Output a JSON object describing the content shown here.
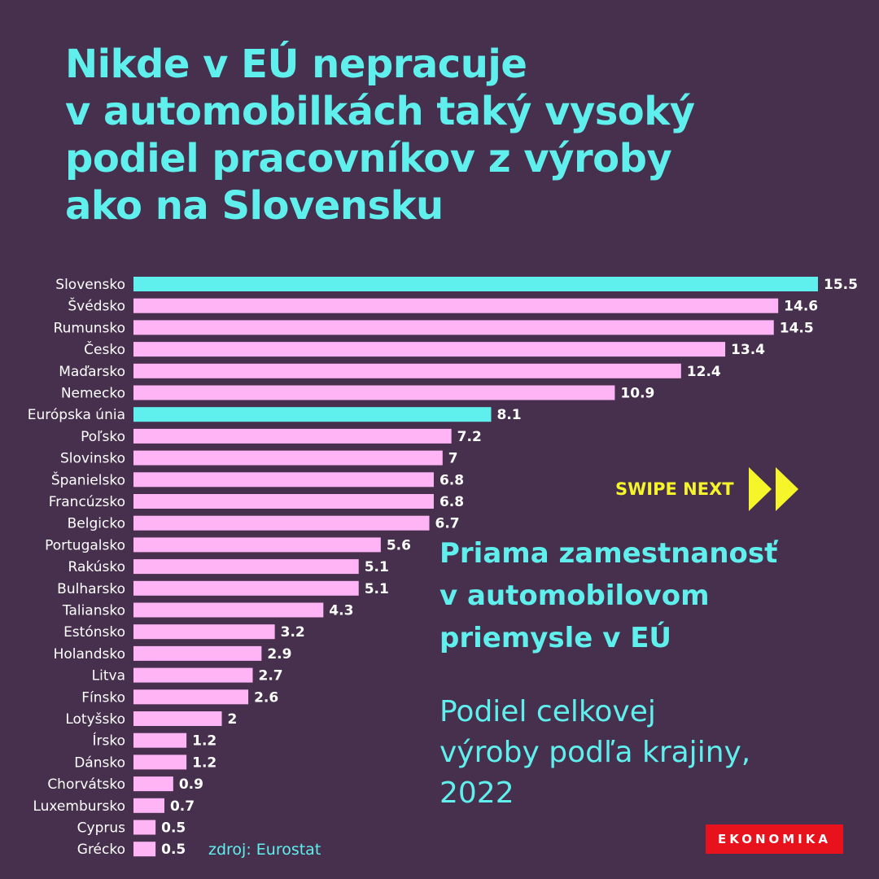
{
  "title": {
    "lines": [
      "Nikde v EÚ nepracuje",
      "v automobilkách taký vysoký",
      "podiel pracovníkov z výroby",
      "ako na Slovensku"
    ]
  },
  "subtitle": {
    "lines": [
      "Priama zamestnanosť",
      "v automobilovom",
      "priemysle v EÚ"
    ]
  },
  "description": {
    "lines": [
      "Podiel celkovej",
      "výroby podľa krajiny,",
      "2022"
    ]
  },
  "swipe": {
    "label": "SWIPE NEXT",
    "icon": "double-play-arrow-icon"
  },
  "source": "zdroj: Eurostat",
  "logo": "EKONOMIKA",
  "colors": {
    "background": "#47304d",
    "accent_cyan": "#5ff0ee",
    "bar_pink": "#ffb4f5",
    "label_white": "#ffffff",
    "swipe_yellow": "#f5f52a",
    "logo_red": "#e8121c"
  },
  "chart_data": {
    "type": "bar",
    "orientation": "horizontal",
    "categories": [
      "Slovensko",
      "Švédsko",
      "Rumunsko",
      "Česko",
      "Maďarsko",
      "Nemecko",
      "Európska únia",
      "Poľsko",
      "Slovinsko",
      "Španielsko",
      "Francúzsko",
      "Belgicko",
      "Portugalsko",
      "Rakúsko",
      "Bulharsko",
      "Taliansko",
      "Estónsko",
      "Holandsko",
      "Litva",
      "Fínsko",
      "Lotyšsko",
      "Írsko",
      "Dánsko",
      "Chorvátsko",
      "Luxembursko",
      "Cyprus",
      "Grécko"
    ],
    "values": [
      15.5,
      14.6,
      14.5,
      13.4,
      12.4,
      10.9,
      8.1,
      7.2,
      7,
      6.8,
      6.8,
      6.7,
      5.6,
      5.1,
      5.1,
      4.3,
      3.2,
      2.9,
      2.7,
      2.6,
      2,
      1.2,
      1.2,
      0.9,
      0.7,
      0.5,
      0.5
    ],
    "value_labels": [
      "15.5",
      "14.6",
      "14.5",
      "13.4",
      "12.4",
      "10.9",
      "8.1",
      "7.2",
      "7",
      "6.8",
      "6.8",
      "6.7",
      "5.6",
      "5.1",
      "5.1",
      "4.3",
      "3.2",
      "2.9",
      "2.7",
      "2.6",
      "2",
      "1.2",
      "1.2",
      "0.9",
      "0.7",
      "0.5",
      "0.5"
    ],
    "highlighted": [
      "Slovensko",
      "Európska únia"
    ],
    "xlim": [
      0,
      15.5
    ],
    "grid": false,
    "legend": "none"
  }
}
